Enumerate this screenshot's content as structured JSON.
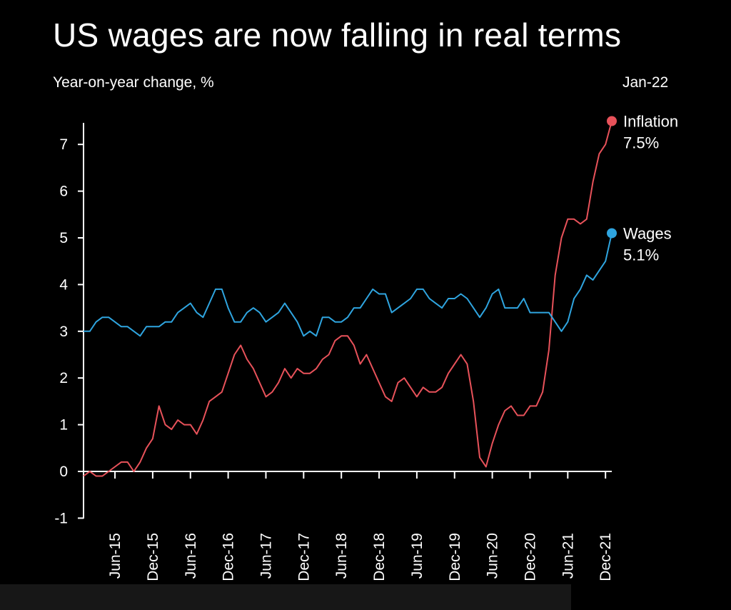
{
  "chart_data": {
    "type": "line",
    "title": "US wages are now falling in real terms",
    "subtitle": "Year-on-year change, %",
    "latest_label": "Jan-22",
    "xlabel": "",
    "ylabel": "Year-on-year change, %",
    "ylim": [
      -1,
      7.5
    ],
    "yticks": [
      -1,
      0,
      1,
      2,
      3,
      4,
      5,
      6,
      7
    ],
    "x_start": "Jan-15",
    "x_end": "Jan-22",
    "xticks": [
      {
        "index": 5,
        "label": "Jun-15"
      },
      {
        "index": 11,
        "label": "Dec-15"
      },
      {
        "index": 17,
        "label": "Jun-16"
      },
      {
        "index": 23,
        "label": "Dec-16"
      },
      {
        "index": 29,
        "label": "Jun-17"
      },
      {
        "index": 35,
        "label": "Dec-17"
      },
      {
        "index": 41,
        "label": "Jun-18"
      },
      {
        "index": 47,
        "label": "Dec-18"
      },
      {
        "index": 53,
        "label": "Jun-19"
      },
      {
        "index": 59,
        "label": "Dec-19"
      },
      {
        "index": 65,
        "label": "Jun-20"
      },
      {
        "index": 71,
        "label": "Dec-20"
      },
      {
        "index": 77,
        "label": "Jun-21"
      },
      {
        "index": 83,
        "label": "Dec-21"
      }
    ],
    "series": [
      {
        "name": "Inflation",
        "color": "#e8525a",
        "end_value_label": "7.5%",
        "values": [
          -0.1,
          0.0,
          -0.1,
          -0.1,
          0.0,
          0.1,
          0.2,
          0.2,
          0.0,
          0.2,
          0.5,
          0.7,
          1.4,
          1.0,
          0.9,
          1.1,
          1.0,
          1.0,
          0.8,
          1.1,
          1.5,
          1.6,
          1.7,
          2.1,
          2.5,
          2.7,
          2.4,
          2.2,
          1.9,
          1.6,
          1.7,
          1.9,
          2.2,
          2.0,
          2.2,
          2.1,
          2.1,
          2.2,
          2.4,
          2.5,
          2.8,
          2.9,
          2.9,
          2.7,
          2.3,
          2.5,
          2.2,
          1.9,
          1.6,
          1.5,
          1.9,
          2.0,
          1.8,
          1.6,
          1.8,
          1.7,
          1.7,
          1.8,
          2.1,
          2.3,
          2.5,
          2.3,
          1.5,
          0.3,
          0.1,
          0.6,
          1.0,
          1.3,
          1.4,
          1.2,
          1.2,
          1.4,
          1.4,
          1.7,
          2.6,
          4.2,
          5.0,
          5.4,
          5.4,
          5.3,
          5.4,
          6.2,
          6.8,
          7.0,
          7.5
        ]
      },
      {
        "name": "Wages",
        "color": "#2fa5e0",
        "end_value_label": "5.1%",
        "values": [
          3.0,
          3.0,
          3.2,
          3.3,
          3.3,
          3.2,
          3.1,
          3.1,
          3.0,
          2.9,
          3.1,
          3.1,
          3.1,
          3.2,
          3.2,
          3.4,
          3.5,
          3.6,
          3.4,
          3.3,
          3.6,
          3.9,
          3.9,
          3.5,
          3.2,
          3.2,
          3.4,
          3.5,
          3.4,
          3.2,
          3.3,
          3.4,
          3.6,
          3.4,
          3.2,
          2.9,
          3.0,
          2.9,
          3.3,
          3.3,
          3.2,
          3.2,
          3.3,
          3.5,
          3.5,
          3.7,
          3.9,
          3.8,
          3.8,
          3.4,
          3.5,
          3.6,
          3.7,
          3.9,
          3.9,
          3.7,
          3.6,
          3.5,
          3.7,
          3.7,
          3.8,
          3.7,
          3.5,
          3.3,
          3.5,
          3.8,
          3.9,
          3.5,
          3.5,
          3.5,
          3.7,
          3.4,
          3.4,
          3.4,
          3.4,
          3.2,
          3.0,
          3.2,
          3.7,
          3.9,
          4.2,
          4.1,
          4.3,
          4.5,
          5.1
        ]
      }
    ]
  }
}
